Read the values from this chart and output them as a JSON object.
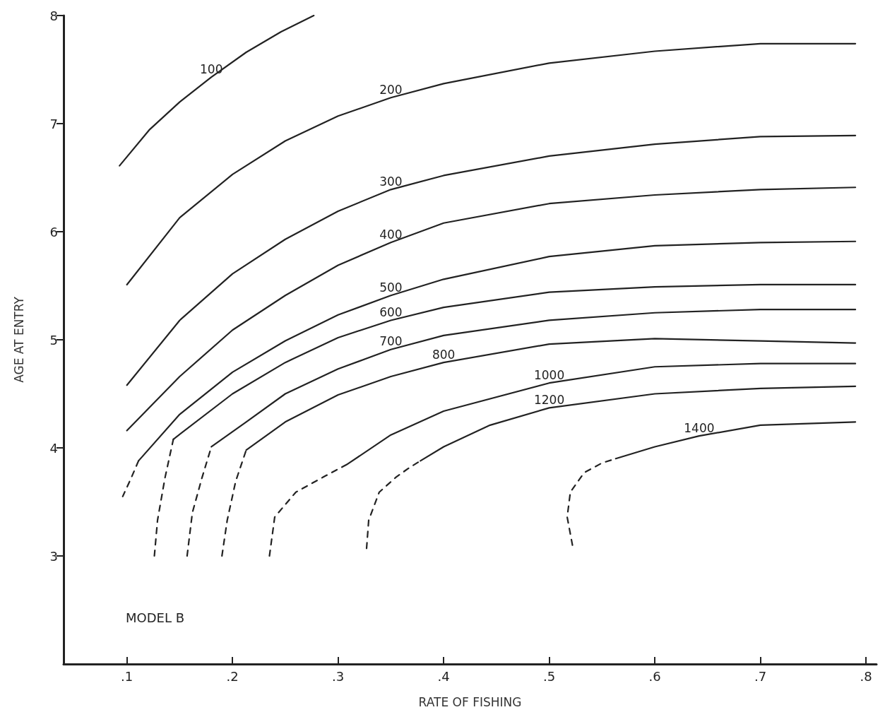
{
  "chart_data": {
    "type": "line",
    "xlabel": "RATE OF FISHING",
    "ylabel": "AGE AT ENTRY",
    "xlim": [
      0.04,
      0.81
    ],
    "ylim": [
      2,
      8
    ],
    "xticks": [
      {
        "value": 0.1,
        "label": ".1"
      },
      {
        "value": 0.2,
        "label": ".2"
      },
      {
        "value": 0.3,
        "label": ".3"
      },
      {
        "value": 0.4,
        "label": ".4"
      },
      {
        "value": 0.5,
        "label": ".5"
      },
      {
        "value": 0.6,
        "label": ".6"
      },
      {
        "value": 0.7,
        "label": ".7"
      },
      {
        "value": 0.8,
        "label": ".8"
      }
    ],
    "yticks": [
      3,
      4,
      5,
      6,
      7,
      8
    ],
    "grid": false,
    "legend": false,
    "marker": "none",
    "annotations": [
      "MODEL B"
    ],
    "series": [
      {
        "name": "100",
        "color": "#222222",
        "line_style": "solid",
        "x": [
          0.093,
          0.121,
          0.15,
          0.18,
          0.213,
          0.246,
          0.277
        ],
        "values": [
          6.61,
          6.94,
          7.2,
          7.43,
          7.66,
          7.85,
          8.0
        ]
      },
      {
        "name": "200",
        "color": "#222222",
        "line_style": "solid",
        "x": [
          0.1,
          0.15,
          0.2,
          0.25,
          0.3,
          0.35,
          0.4,
          0.5,
          0.6,
          0.7,
          0.79
        ],
        "values": [
          5.51,
          6.13,
          6.53,
          6.84,
          7.07,
          7.24,
          7.37,
          7.56,
          7.67,
          7.74,
          7.74
        ]
      },
      {
        "name": "300",
        "color": "#222222",
        "line_style": "solid",
        "x": [
          0.1,
          0.15,
          0.2,
          0.25,
          0.3,
          0.35,
          0.4,
          0.5,
          0.6,
          0.7,
          0.79
        ],
        "values": [
          4.58,
          5.18,
          5.61,
          5.93,
          6.19,
          6.39,
          6.52,
          6.7,
          6.81,
          6.88,
          6.89
        ]
      },
      {
        "name": "400",
        "color": "#222222",
        "line_style": "solid",
        "x": [
          0.1,
          0.15,
          0.2,
          0.25,
          0.3,
          0.35,
          0.4,
          0.5,
          0.6,
          0.7,
          0.79
        ],
        "values": [
          4.16,
          4.66,
          5.09,
          5.41,
          5.69,
          5.9,
          6.08,
          6.26,
          6.34,
          6.39,
          6.41
        ]
      },
      {
        "name": "500",
        "color": "#222222",
        "line_style": "solid",
        "x": [
          0.111,
          0.15,
          0.2,
          0.25,
          0.3,
          0.35,
          0.4,
          0.5,
          0.6,
          0.7,
          0.79
        ],
        "values": [
          3.88,
          4.31,
          4.7,
          4.99,
          5.23,
          5.41,
          5.56,
          5.77,
          5.87,
          5.9,
          5.91
        ]
      },
      {
        "color": "#222222",
        "line_style": "dashed",
        "x": [
          0.111,
          0.104,
          0.096
        ],
        "values": [
          3.88,
          3.72,
          3.55
        ]
      },
      {
        "name": "600",
        "color": "#222222",
        "line_style": "solid",
        "x": [
          0.144,
          0.2,
          0.25,
          0.3,
          0.35,
          0.4,
          0.5,
          0.6,
          0.7,
          0.79
        ],
        "values": [
          4.08,
          4.5,
          4.79,
          5.02,
          5.18,
          5.3,
          5.44,
          5.49,
          5.51,
          5.51
        ]
      },
      {
        "color": "#222222",
        "line_style": "dashed",
        "x": [
          0.126,
          0.129,
          0.136,
          0.144
        ],
        "values": [
          3.0,
          3.33,
          3.72,
          4.08
        ]
      },
      {
        "name": "700",
        "color": "#222222",
        "line_style": "solid",
        "x": [
          0.18,
          0.213,
          0.25,
          0.3,
          0.35,
          0.4,
          0.5,
          0.6,
          0.7,
          0.79
        ],
        "values": [
          4.01,
          4.24,
          4.5,
          4.73,
          4.91,
          5.04,
          5.18,
          5.25,
          5.28,
          5.28
        ]
      },
      {
        "color": "#222222",
        "line_style": "dashed",
        "x": [
          0.157,
          0.162,
          0.171,
          0.18
        ],
        "values": [
          3.0,
          3.4,
          3.72,
          4.01
        ]
      },
      {
        "name": "800",
        "color": "#222222",
        "line_style": "solid",
        "x": [
          0.213,
          0.25,
          0.3,
          0.35,
          0.4,
          0.5,
          0.6,
          0.7,
          0.79
        ],
        "values": [
          3.98,
          4.24,
          4.49,
          4.66,
          4.79,
          4.96,
          5.01,
          4.99,
          4.97
        ]
      },
      {
        "color": "#222222",
        "line_style": "dashed",
        "x": [
          0.19,
          0.195,
          0.203,
          0.213
        ],
        "values": [
          3.0,
          3.33,
          3.69,
          3.98
        ]
      },
      {
        "name": "1000",
        "color": "#222222",
        "line_style": "solid",
        "x": [
          0.309,
          0.35,
          0.4,
          0.5,
          0.6,
          0.7,
          0.79
        ],
        "values": [
          3.85,
          4.12,
          4.34,
          4.6,
          4.75,
          4.78,
          4.78
        ]
      },
      {
        "color": "#222222",
        "line_style": "dashed",
        "x": [
          0.235,
          0.24,
          0.26,
          0.286,
          0.309
        ],
        "values": [
          3.0,
          3.36,
          3.59,
          3.73,
          3.85
        ]
      },
      {
        "name": "1200",
        "color": "#222222",
        "line_style": "solid",
        "x": [
          0.378,
          0.4,
          0.444,
          0.5,
          0.6,
          0.7,
          0.79
        ],
        "values": [
          3.88,
          4.01,
          4.21,
          4.37,
          4.5,
          4.55,
          4.57
        ]
      },
      {
        "color": "#222222",
        "line_style": "dashed",
        "x": [
          0.327,
          0.329,
          0.339,
          0.355,
          0.368,
          0.378
        ],
        "values": [
          3.07,
          3.33,
          3.59,
          3.73,
          3.82,
          3.88
        ]
      },
      {
        "name": "1400",
        "color": "#222222",
        "line_style": "solid",
        "x": [
          0.563,
          0.6,
          0.642,
          0.7,
          0.79
        ],
        "values": [
          3.9,
          4.01,
          4.11,
          4.21,
          4.24
        ]
      },
      {
        "color": "#222222",
        "line_style": "dashed",
        "x": [
          0.522,
          0.517,
          0.52,
          0.533,
          0.55,
          0.563
        ],
        "values": [
          3.1,
          3.36,
          3.59,
          3.77,
          3.86,
          3.9
        ]
      }
    ]
  }
}
